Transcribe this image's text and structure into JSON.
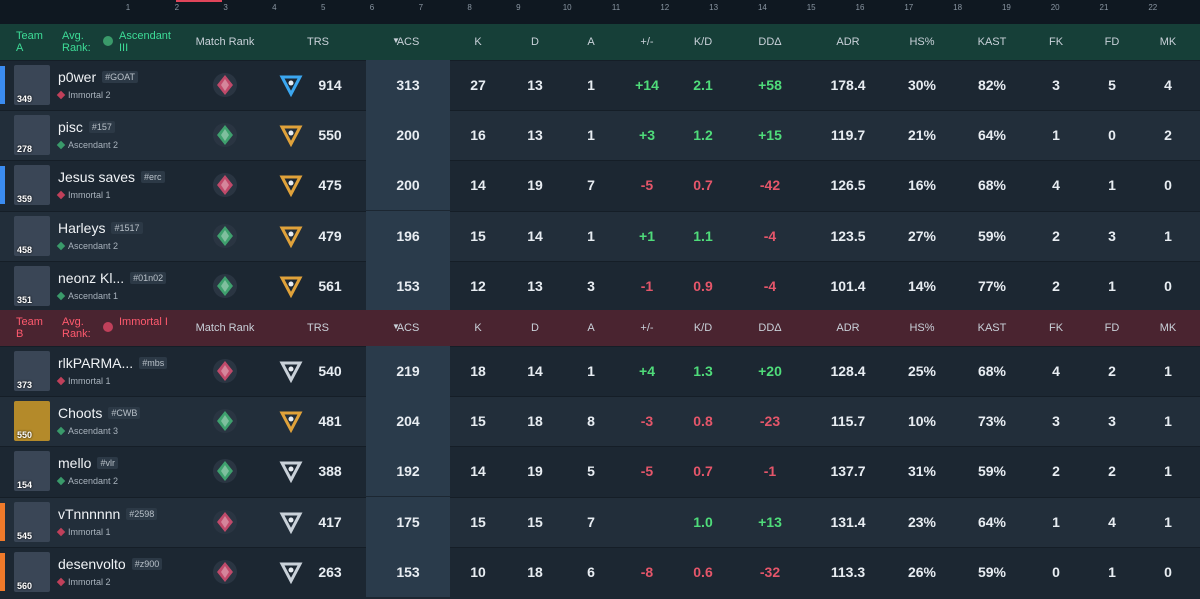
{
  "round_numbers": [
    "1",
    "2",
    "3",
    "4",
    "5",
    "6",
    "7",
    "8",
    "9",
    "10",
    "11",
    "12",
    "13",
    "14",
    "15",
    "16",
    "17",
    "18",
    "19",
    "20",
    "21",
    "22"
  ],
  "columns": [
    "Match Rank",
    "TRS",
    "ACS",
    "K",
    "D",
    "A",
    "+/-",
    "K/D",
    "DDΔ",
    "ADR",
    "HS%",
    "KAST",
    "FK",
    "FD",
    "MK"
  ],
  "teams": [
    {
      "name": "Team A",
      "avg_rank_label": "Avg. Rank:",
      "avg_rank": "Ascendant III",
      "players": [
        {
          "level": "349",
          "name": "p0wer",
          "tag": "#GOAT",
          "rank": "Immortal 2",
          "stats": [
            "914",
            "313",
            "27",
            "13",
            "1",
            "+14",
            "2.1",
            "+58",
            "178.4",
            "30%",
            "82%",
            "3",
            "5",
            "4"
          ]
        },
        {
          "level": "278",
          "name": "pisc",
          "tag": "#157",
          "rank": "Ascendant 2",
          "stats": [
            "550",
            "200",
            "16",
            "13",
            "1",
            "+3",
            "1.2",
            "+15",
            "119.7",
            "21%",
            "64%",
            "1",
            "0",
            "2"
          ]
        },
        {
          "level": "359",
          "name": "Jesus saves",
          "tag": "#erc",
          "rank": "Immortal 1",
          "stats": [
            "475",
            "200",
            "14",
            "19",
            "7",
            "-5",
            "0.7",
            "-42",
            "126.5",
            "16%",
            "68%",
            "4",
            "1",
            "0"
          ]
        },
        {
          "level": "458",
          "name": "Harleys",
          "tag": "#1517",
          "rank": "Ascendant 2",
          "stats": [
            "479",
            "196",
            "15",
            "14",
            "1",
            "+1",
            "1.1",
            "-4",
            "123.5",
            "27%",
            "59%",
            "2",
            "3",
            "1"
          ]
        },
        {
          "level": "351",
          "name": "neonz Kl...",
          "tag": "#01n02",
          "rank": "Ascendant 1",
          "stats": [
            "561",
            "153",
            "12",
            "13",
            "3",
            "-1",
            "0.9",
            "-4",
            "101.4",
            "14%",
            "77%",
            "2",
            "1",
            "0"
          ]
        }
      ]
    },
    {
      "name": "Team B",
      "avg_rank_label": "Avg. Rank:",
      "avg_rank": "Immortal I",
      "players": [
        {
          "level": "373",
          "name": "rlkPARMA...",
          "tag": "#mbs",
          "rank": "Immortal 1",
          "stats": [
            "540",
            "219",
            "18",
            "14",
            "1",
            "+4",
            "1.3",
            "+20",
            "128.4",
            "25%",
            "68%",
            "4",
            "2",
            "1"
          ]
        },
        {
          "level": "550",
          "name": "Choots",
          "tag": "#CWB",
          "rank": "Ascendant 3",
          "stats": [
            "481",
            "204",
            "15",
            "18",
            "8",
            "-3",
            "0.8",
            "-23",
            "115.7",
            "10%",
            "73%",
            "3",
            "3",
            "1"
          ]
        },
        {
          "level": "154",
          "name": "mello",
          "tag": "#vlr",
          "rank": "Ascendant 2",
          "stats": [
            "388",
            "192",
            "14",
            "19",
            "5",
            "-5",
            "0.7",
            "-1",
            "137.7",
            "31%",
            "59%",
            "2",
            "2",
            "1"
          ]
        },
        {
          "level": "545",
          "name": "vTnnnnnn",
          "tag": "#2598",
          "rank": "Immortal 1",
          "stats": [
            "417",
            "175",
            "15",
            "15",
            "7",
            null,
            "1.0",
            "+13",
            "131.4",
            "23%",
            "64%",
            "1",
            "4",
            "1"
          ]
        },
        {
          "level": "560",
          "name": "desenvolto",
          "tag": "#z900",
          "rank": "Immortal 2",
          "stats": [
            "263",
            "153",
            "10",
            "18",
            "6",
            "-8",
            "0.6",
            "-32",
            "113.3",
            "26%",
            "59%",
            "0",
            "1",
            "0"
          ]
        }
      ]
    }
  ]
}
